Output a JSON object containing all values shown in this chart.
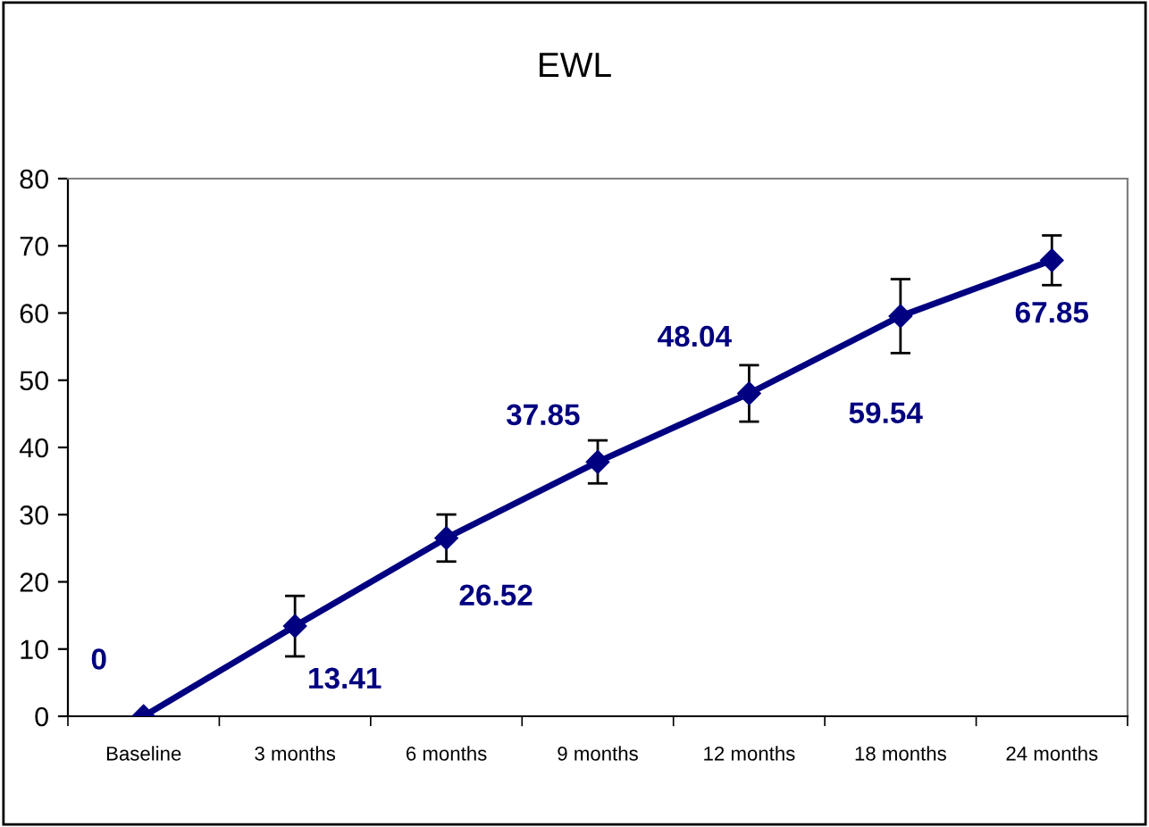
{
  "chart_data": {
    "type": "line",
    "title": "EWL",
    "categories": [
      "Baseline",
      "3 months",
      "6 months",
      "9 months",
      "12 months",
      "18 months",
      "24 months"
    ],
    "series": [
      {
        "color": "#000080",
        "values": [
          0,
          13.41,
          26.52,
          37.85,
          48.04,
          59.54,
          67.85
        ],
        "errors": [
          null,
          4.5,
          3.5,
          3.2,
          4.2,
          5.5,
          3.7
        ]
      }
    ],
    "ylim": [
      0,
      80
    ],
    "yticks": [
      0,
      10,
      20,
      30,
      40,
      50,
      60,
      70,
      80
    ],
    "grid": false,
    "marker": "diamond",
    "line_style": "solid",
    "data_labels": true
  }
}
